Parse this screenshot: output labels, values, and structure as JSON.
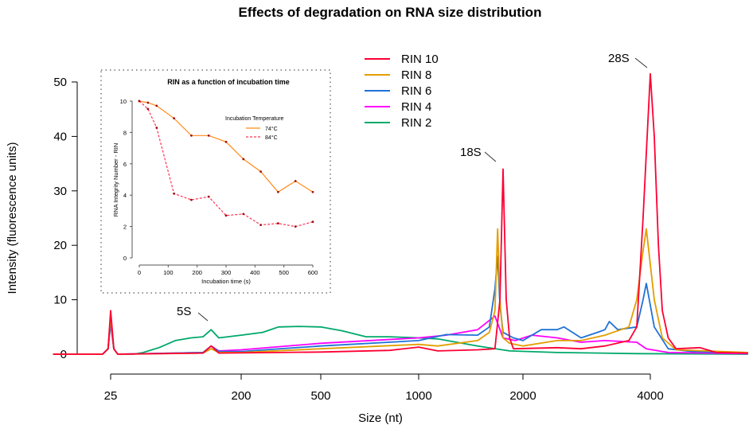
{
  "chart_data": [
    {
      "type": "line",
      "title": "Effects of degradation on RNA size distribution",
      "xlabel": "Size (nt)",
      "ylabel": "Intensity (fluorescence units)",
      "x_ticks": [
        25,
        200,
        500,
        1000,
        2000,
        4000
      ],
      "x_tick_labels": [
        "25",
        "200",
        "500",
        "1000",
        "2000",
        "4000"
      ],
      "y_ticks": [
        0,
        10,
        20,
        30,
        40,
        50
      ],
      "y_tick_labels": [
        "0",
        "10",
        "20",
        "30",
        "40",
        "50"
      ],
      "ylim": [
        0,
        50
      ],
      "grid": false,
      "legend_position": "top-center",
      "annotations": [
        {
          "label": "5S",
          "x": 124,
          "y": 4.5
        },
        {
          "label": "18S",
          "x": 1752,
          "y": 34
        },
        {
          "label": "28S",
          "x": 4000,
          "y": 51.5
        }
      ],
      "series": [
        {
          "name": "RIN 10",
          "color": "#ff0033",
          "points": [
            [
              10,
              0
            ],
            [
              22,
              0
            ],
            [
              24,
              1
            ],
            [
              25,
              8
            ],
            [
              26.3,
              1
            ],
            [
              28,
              0
            ],
            [
              109,
              0.2
            ],
            [
              124,
              1.5
            ],
            [
              140,
              0.2
            ],
            [
              307,
              0.3
            ],
            [
              500,
              0.4
            ],
            [
              816,
              0.7
            ],
            [
              1000,
              1.3
            ],
            [
              1135,
              0.6
            ],
            [
              1480,
              0.8
            ],
            [
              1660,
              1
            ],
            [
              1716,
              10
            ],
            [
              1752,
              34
            ],
            [
              1790,
              10
            ],
            [
              1830,
              3
            ],
            [
              1877,
              1
            ],
            [
              2410,
              1.2
            ],
            [
              2744,
              1
            ],
            [
              3125,
              1.5
            ],
            [
              3560,
              2.5
            ],
            [
              3716,
              5
            ],
            [
              3846,
              25
            ],
            [
              4000,
              51.5
            ],
            [
              4088,
              40
            ],
            [
              4180,
              20
            ],
            [
              4270,
              8
            ],
            [
              4410,
              3
            ],
            [
              4600,
              1
            ],
            [
              5240,
              1.2
            ],
            [
              5730,
              0.3
            ],
            [
              6810,
              0.2
            ]
          ]
        },
        {
          "name": "RIN 8",
          "color": "#e39e00",
          "points": [
            [
              10,
              0
            ],
            [
              22,
              0
            ],
            [
              24,
              1
            ],
            [
              25,
              7
            ],
            [
              26.3,
              1
            ],
            [
              28,
              0
            ],
            [
              109,
              0.2
            ],
            [
              124,
              1
            ],
            [
              140,
              0.3
            ],
            [
              200,
              0.3
            ],
            [
              500,
              1
            ],
            [
              1000,
              1.8
            ],
            [
              1135,
              1.5
            ],
            [
              1480,
              2.5
            ],
            [
              1600,
              4
            ],
            [
              1660,
              8
            ],
            [
              1690,
              23
            ],
            [
              1716,
              10
            ],
            [
              1752,
              3
            ],
            [
              1830,
              2
            ],
            [
              2000,
              1.5
            ],
            [
              2410,
              2.5
            ],
            [
              2744,
              2.5
            ],
            [
              3125,
              3.5
            ],
            [
              3560,
              5
            ],
            [
              3716,
              10
            ],
            [
              3846,
              19
            ],
            [
              3915,
              23
            ],
            [
              4088,
              10
            ],
            [
              4270,
              3
            ],
            [
              4600,
              0.8
            ],
            [
              6810,
              0.3
            ]
          ]
        },
        {
          "name": "RIN 6",
          "color": "#1f72d6",
          "points": [
            [
              10,
              0
            ],
            [
              22,
              0
            ],
            [
              24,
              1
            ],
            [
              25,
              6.5
            ],
            [
              26.3,
              1
            ],
            [
              28,
              0
            ],
            [
              109,
              0.3
            ],
            [
              124,
              1.5
            ],
            [
              140,
              0.5
            ],
            [
              200,
              0.5
            ],
            [
              500,
              1.5
            ],
            [
              1000,
              2.5
            ],
            [
              1200,
              3.6
            ],
            [
              1480,
              3.5
            ],
            [
              1600,
              5
            ],
            [
              1660,
              12
            ],
            [
              1690,
              18
            ],
            [
              1716,
              9
            ],
            [
              1752,
              4
            ],
            [
              1877,
              3
            ],
            [
              2000,
              2.5
            ],
            [
              2210,
              4.5
            ],
            [
              2410,
              4.5
            ],
            [
              2500,
              5
            ],
            [
              2744,
              3
            ],
            [
              3000,
              4
            ],
            [
              3125,
              4.5
            ],
            [
              3200,
              6
            ],
            [
              3350,
              4.5
            ],
            [
              3716,
              5
            ],
            [
              3846,
              10
            ],
            [
              3915,
              13
            ],
            [
              4088,
              5
            ],
            [
              4410,
              1
            ],
            [
              5000,
              0.5
            ],
            [
              6810,
              0.2
            ]
          ]
        },
        {
          "name": "RIN 4",
          "color": "#ff00ff",
          "points": [
            [
              10,
              0
            ],
            [
              22,
              0
            ],
            [
              24,
              1
            ],
            [
              25,
              6
            ],
            [
              26.3,
              1
            ],
            [
              28,
              0
            ],
            [
              109,
              0.3
            ],
            [
              124,
              1.5
            ],
            [
              140,
              0.6
            ],
            [
              200,
              0.8
            ],
            [
              500,
              2
            ],
            [
              1000,
              3
            ],
            [
              1200,
              3.5
            ],
            [
              1480,
              4.5
            ],
            [
              1660,
              7
            ],
            [
              1752,
              3
            ],
            [
              1900,
              2.5
            ],
            [
              2100,
              3.5
            ],
            [
              2410,
              3
            ],
            [
              2744,
              2.2
            ],
            [
              3125,
              2.5
            ],
            [
              3716,
              2.2
            ],
            [
              3915,
              1
            ],
            [
              4410,
              0.3
            ],
            [
              6810,
              0.1
            ]
          ]
        },
        {
          "name": "RIN 2",
          "color": "#00a86b",
          "points": [
            [
              10,
              0
            ],
            [
              22,
              0
            ],
            [
              24,
              1
            ],
            [
              25,
              5.5
            ],
            [
              26.3,
              1
            ],
            [
              28,
              0
            ],
            [
              36,
              0
            ],
            [
              42,
              0.3
            ],
            [
              54,
              1.2
            ],
            [
              70,
              2.5
            ],
            [
              90,
              3
            ],
            [
              109,
              3.2
            ],
            [
              124,
              4.5
            ],
            [
              140,
              3
            ],
            [
              200,
              3.5
            ],
            [
              256,
              4
            ],
            [
              307,
              5
            ],
            [
              387,
              5.1
            ],
            [
              500,
              5
            ],
            [
              582,
              4.3
            ],
            [
              689,
              3.2
            ],
            [
              816,
              3.2
            ],
            [
              1000,
              3
            ],
            [
              1135,
              2.8
            ],
            [
              1480,
              1.5
            ],
            [
              1830,
              0.6
            ],
            [
              2410,
              0.3
            ],
            [
              3716,
              0.1
            ],
            [
              6810,
              0
            ]
          ]
        }
      ]
    },
    {
      "type": "line",
      "title": "RIN as a function of incubation time",
      "xlabel": "Incubation time (s)",
      "ylabel": "RNA Integrity Number - RIN",
      "xlim": [
        0,
        600
      ],
      "ylim": [
        0,
        10
      ],
      "x_ticks": [
        0,
        100,
        200,
        300,
        400,
        500,
        600
      ],
      "x_tick_labels": [
        "0",
        "100",
        "200",
        "300",
        "400",
        "500",
        "600"
      ],
      "y_ticks": [
        0,
        2,
        4,
        6,
        8,
        10
      ],
      "y_tick_labels": [
        "0",
        "2",
        "4",
        "6",
        "8",
        "10"
      ],
      "grid": false,
      "legend_title": "Incubation Temperature",
      "legend_position": "top-right",
      "x": [
        0,
        30,
        60,
        120,
        180,
        240,
        300,
        360,
        420,
        480,
        540,
        600
      ],
      "series": [
        {
          "name": "74°C",
          "color": "#ff8c1a",
          "style": "solid",
          "values": [
            10,
            9.9,
            9.7,
            8.9,
            7.8,
            7.8,
            7.4,
            6.3,
            5.5,
            4.2,
            4.9,
            4.2
          ]
        },
        {
          "name": "84°C",
          "color": "#ff3355",
          "style": "dashed",
          "values": [
            10,
            9.5,
            8.3,
            4.1,
            3.7,
            3.9,
            2.7,
            2.8,
            2.1,
            2.2,
            2.0,
            2.3
          ]
        }
      ],
      "marker_color": "#a01010"
    }
  ]
}
